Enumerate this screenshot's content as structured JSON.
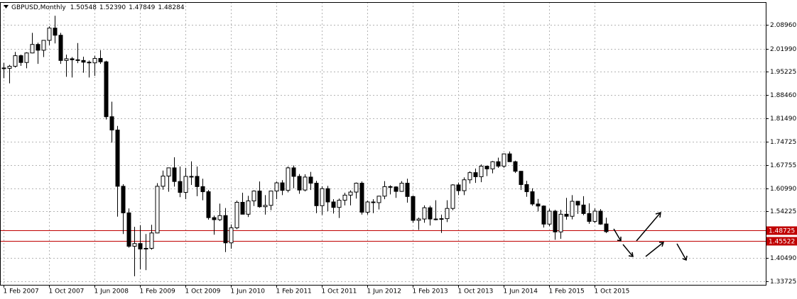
{
  "chart_data": {
    "type": "candlestick",
    "title": "GBPUSD,Monthly",
    "header_values": [
      "1.50548",
      "1.52390",
      "1.47849",
      "1.48284"
    ],
    "categories": [
      "1 Feb 2007",
      null,
      null,
      null,
      null,
      null,
      null,
      null,
      "1 Oct 2007",
      null,
      null,
      null,
      null,
      null,
      null,
      null,
      "1 Jun 2008",
      null,
      null,
      null,
      null,
      null,
      null,
      null,
      "1 Feb 2009",
      null,
      null,
      null,
      null,
      null,
      null,
      null,
      "1 Oct 2009",
      null,
      null,
      null,
      null,
      null,
      null,
      null,
      "1 Jun 2010",
      null,
      null,
      null,
      null,
      null,
      null,
      null,
      "1 Feb 2011",
      null,
      null,
      null,
      null,
      null,
      null,
      null,
      "1 Oct 2011",
      null,
      null,
      null,
      null,
      null,
      null,
      null,
      "1 Jun 2012",
      null,
      null,
      null,
      null,
      null,
      null,
      null,
      "1 Feb 2013",
      null,
      null,
      null,
      null,
      null,
      null,
      null,
      "1 Oct 2013",
      null,
      null,
      null,
      null,
      null,
      null,
      null,
      "1 Jun 2014",
      null,
      null,
      null,
      null,
      null,
      null,
      null,
      "1 Feb 2015",
      null,
      null,
      null,
      null,
      null,
      null,
      null,
      "1 Oct 2015",
      null,
      null
    ],
    "open": [
      1.963,
      1.962,
      1.968,
      1.999,
      1.979,
      2.007,
      2.032,
      2.015,
      2.044,
      2.08,
      2.059,
      1.985,
      1.99,
      1.987,
      1.985,
      1.98,
      1.978,
      1.991,
      1.981,
      1.82,
      1.781,
      1.616,
      1.538,
      1.44,
      1.448,
      1.432,
      1.434,
      1.479,
      1.616,
      1.646,
      1.67,
      1.63,
      1.598,
      1.645,
      1.645,
      1.615,
      1.6,
      1.524,
      1.518,
      1.53,
      1.45,
      1.494,
      1.569,
      1.534,
      1.573,
      1.602,
      1.556,
      1.56,
      1.602,
      1.626,
      1.604,
      1.67,
      1.645,
      1.605,
      1.643,
      1.625,
      1.559,
      1.609,
      1.57,
      1.554,
      1.575,
      1.59,
      1.599,
      1.625,
      1.54,
      1.57,
      1.568,
      1.587,
      1.615,
      1.614,
      1.601,
      1.625,
      1.586,
      1.516,
      1.52,
      1.553,
      1.52,
      1.52,
      1.521,
      1.551,
      1.62,
      1.603,
      1.635,
      1.656,
      1.644,
      1.675,
      1.667,
      1.688,
      1.675,
      1.711,
      1.688,
      1.66,
      1.621,
      1.6,
      1.564,
      1.558,
      1.505,
      1.543,
      1.482,
      1.534,
      1.528,
      1.572,
      1.561,
      1.536,
      1.513,
      1.543,
      1.50548
    ],
    "high": [
      1.978,
      1.972,
      2.01,
      2.002,
      2.009,
      2.066,
      2.037,
      2.045,
      2.085,
      2.116,
      2.066,
      2.002,
      1.995,
      2.036,
      1.996,
      1.985,
      1.999,
      2.015,
      1.984,
      1.864,
      1.793,
      1.622,
      1.551,
      1.497,
      1.502,
      1.476,
      1.503,
      1.625,
      1.662,
      1.67,
      1.701,
      1.674,
      1.67,
      1.689,
      1.674,
      1.638,
      1.605,
      1.53,
      1.565,
      1.552,
      1.504,
      1.574,
      1.597,
      1.588,
      1.604,
      1.63,
      1.59,
      1.603,
      1.63,
      1.634,
      1.674,
      1.677,
      1.652,
      1.651,
      1.658,
      1.632,
      1.616,
      1.617,
      1.578,
      1.58,
      1.597,
      1.604,
      1.627,
      1.63,
      1.574,
      1.578,
      1.588,
      1.631,
      1.619,
      1.616,
      1.631,
      1.638,
      1.589,
      1.524,
      1.56,
      1.559,
      1.575,
      1.533,
      1.575,
      1.622,
      1.627,
      1.642,
      1.66,
      1.668,
      1.68,
      1.676,
      1.69,
      1.7,
      1.712,
      1.718,
      1.691,
      1.66,
      1.632,
      1.61,
      1.579,
      1.56,
      1.55,
      1.547,
      1.547,
      1.582,
      1.59,
      1.573,
      1.587,
      1.566,
      1.551,
      1.549,
      1.5239
    ],
    "low": [
      1.933,
      1.918,
      1.964,
      1.969,
      1.962,
      2.006,
      1.975,
      1.995,
      2.03,
      2.035,
      1.975,
      1.937,
      1.935,
      1.977,
      1.949,
      1.935,
      1.94,
      1.975,
      1.812,
      1.744,
      1.527,
      1.476,
      1.436,
      1.352,
      1.372,
      1.37,
      1.43,
      1.478,
      1.606,
      1.6,
      1.615,
      1.584,
      1.578,
      1.62,
      1.587,
      1.575,
      1.518,
      1.474,
      1.514,
      1.423,
      1.433,
      1.49,
      1.535,
      1.526,
      1.558,
      1.553,
      1.533,
      1.546,
      1.578,
      1.59,
      1.598,
      1.61,
      1.594,
      1.601,
      1.605,
      1.537,
      1.532,
      1.543,
      1.536,
      1.523,
      1.56,
      1.56,
      1.58,
      1.533,
      1.533,
      1.537,
      1.548,
      1.578,
      1.592,
      1.582,
      1.6,
      1.568,
      1.509,
      1.488,
      1.509,
      1.501,
      1.516,
      1.479,
      1.511,
      1.546,
      1.59,
      1.59,
      1.624,
      1.626,
      1.628,
      1.646,
      1.654,
      1.67,
      1.67,
      1.688,
      1.655,
      1.605,
      1.585,
      1.559,
      1.542,
      1.495,
      1.499,
      1.459,
      1.462,
      1.518,
      1.519,
      1.535,
      1.531,
      1.506,
      1.508,
      1.503,
      1.47849
    ],
    "close": [
      1.962,
      1.968,
      1.999,
      1.979,
      2.007,
      2.032,
      2.015,
      2.044,
      2.08,
      2.059,
      1.985,
      1.99,
      1.987,
      1.985,
      1.98,
      1.978,
      1.991,
      1.981,
      1.82,
      1.781,
      1.616,
      1.538,
      1.44,
      1.448,
      1.432,
      1.434,
      1.479,
      1.616,
      1.646,
      1.67,
      1.63,
      1.598,
      1.645,
      1.645,
      1.615,
      1.6,
      1.524,
      1.518,
      1.53,
      1.45,
      1.494,
      1.569,
      1.534,
      1.573,
      1.602,
      1.556,
      1.56,
      1.602,
      1.626,
      1.604,
      1.67,
      1.645,
      1.605,
      1.643,
      1.625,
      1.559,
      1.609,
      1.57,
      1.554,
      1.575,
      1.59,
      1.599,
      1.625,
      1.54,
      1.57,
      1.568,
      1.587,
      1.615,
      1.614,
      1.601,
      1.625,
      1.586,
      1.516,
      1.52,
      1.553,
      1.52,
      1.52,
      1.521,
      1.551,
      1.62,
      1.603,
      1.635,
      1.656,
      1.644,
      1.675,
      1.667,
      1.688,
      1.675,
      1.711,
      1.688,
      1.66,
      1.621,
      1.6,
      1.564,
      1.558,
      1.505,
      1.543,
      1.482,
      1.534,
      1.528,
      1.572,
      1.561,
      1.536,
      1.513,
      1.543,
      1.505,
      1.48284
    ],
    "ylim": [
      1.3269,
      2.1561
    ],
    "yticks": [
      {
        "value": 2.0896,
        "label": "2.08960"
      },
      {
        "value": 2.0199,
        "label": "2.01990"
      },
      {
        "value": 1.95225,
        "label": "1.95225"
      },
      {
        "value": 1.8846,
        "label": "1.88460"
      },
      {
        "value": 1.8149,
        "label": "1.81490"
      },
      {
        "value": 1.74725,
        "label": "1.74725"
      },
      {
        "value": 1.67755,
        "label": "1.67755"
      },
      {
        "value": 1.6099,
        "label": "1.60990"
      },
      {
        "value": 1.54225,
        "label": "1.54225"
      },
      {
        "value": 1.4049,
        "label": "1.40490"
      },
      {
        "value": 1.33725,
        "label": "1.33725"
      }
    ],
    "hlines": [
      1.48725,
      1.45522
    ],
    "hline_color": "#c00000",
    "grid": true
  }
}
